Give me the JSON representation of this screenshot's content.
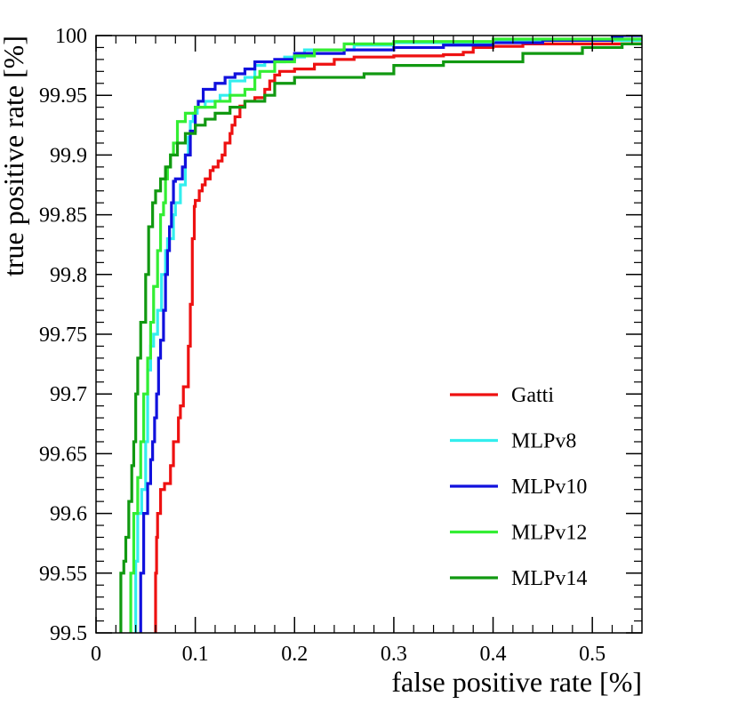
{
  "chart_data": {
    "type": "line",
    "title": "",
    "xlabel": "false positive rate [%]",
    "ylabel": "true positive rate [%]",
    "xlim": [
      0,
      0.55
    ],
    "ylim": [
      99.5,
      100
    ],
    "xticks": [
      0,
      0.1,
      0.2,
      0.3,
      0.4,
      0.5
    ],
    "xtick_labels": [
      "0",
      "0.1",
      "0.2",
      "0.3",
      "0.4",
      "0.5"
    ],
    "yticks": [
      99.5,
      99.55,
      99.6,
      99.65,
      99.7,
      99.75,
      99.8,
      99.85,
      99.9,
      99.95,
      100
    ],
    "ytick_labels": [
      "99.5",
      "99.55",
      "99.6",
      "99.65",
      "99.7",
      "99.75",
      "99.8",
      "99.85",
      "99.9",
      "99.95",
      "100"
    ],
    "grid": false,
    "legend_position": "bottom-right",
    "series": [
      {
        "name": "Gatti",
        "color": "#ee1111",
        "points": [
          [
            0.06,
            99.5
          ],
          [
            0.061,
            99.55
          ],
          [
            0.062,
            99.58
          ],
          [
            0.065,
            99.6
          ],
          [
            0.069,
            99.62
          ],
          [
            0.075,
            99.625
          ],
          [
            0.078,
            99.64
          ],
          [
            0.083,
            99.66
          ],
          [
            0.085,
            99.68
          ],
          [
            0.088,
            99.69
          ],
          [
            0.093,
            99.706
          ],
          [
            0.095,
            99.74
          ],
          [
            0.097,
            99.775
          ],
          [
            0.099,
            99.83
          ],
          [
            0.1,
            99.857
          ],
          [
            0.104,
            99.862
          ],
          [
            0.107,
            99.87
          ],
          [
            0.11,
            99.875
          ],
          [
            0.115,
            99.88
          ],
          [
            0.118,
            99.887
          ],
          [
            0.123,
            99.89
          ],
          [
            0.127,
            99.895
          ],
          [
            0.13,
            99.9
          ],
          [
            0.135,
            99.91
          ],
          [
            0.137,
            99.918
          ],
          [
            0.14,
            99.925
          ],
          [
            0.145,
            99.932
          ],
          [
            0.15,
            99.941
          ],
          [
            0.16,
            99.945
          ],
          [
            0.17,
            99.948
          ],
          [
            0.175,
            99.955
          ],
          [
            0.18,
            99.962
          ],
          [
            0.185,
            99.967
          ],
          [
            0.2,
            99.97
          ],
          [
            0.22,
            99.972
          ],
          [
            0.24,
            99.976
          ],
          [
            0.26,
            99.98
          ],
          [
            0.3,
            99.982
          ],
          [
            0.35,
            99.983
          ],
          [
            0.37,
            99.984
          ],
          [
            0.38,
            99.986
          ],
          [
            0.4,
            99.99
          ],
          [
            0.43,
            99.991
          ],
          [
            0.44,
            99.993
          ],
          [
            0.55,
            99.993
          ]
        ]
      },
      {
        "name": "MLPv8",
        "color": "#33eeee",
        "points": [
          [
            0.04,
            99.5
          ],
          [
            0.042,
            99.56
          ],
          [
            0.046,
            99.6
          ],
          [
            0.05,
            99.62
          ],
          [
            0.052,
            99.66
          ],
          [
            0.055,
            99.72
          ],
          [
            0.058,
            99.74
          ],
          [
            0.062,
            99.75
          ],
          [
            0.066,
            99.77
          ],
          [
            0.07,
            99.8
          ],
          [
            0.072,
            99.82
          ],
          [
            0.078,
            99.83
          ],
          [
            0.08,
            99.85
          ],
          [
            0.085,
            99.86
          ],
          [
            0.09,
            99.875
          ],
          [
            0.093,
            99.9
          ],
          [
            0.095,
            99.915
          ],
          [
            0.098,
            99.928
          ],
          [
            0.102,
            99.935
          ],
          [
            0.11,
            99.94
          ],
          [
            0.125,
            99.945
          ],
          [
            0.135,
            99.95
          ],
          [
            0.15,
            99.962
          ],
          [
            0.16,
            99.965
          ],
          [
            0.17,
            99.975
          ],
          [
            0.19,
            99.978
          ],
          [
            0.21,
            99.982
          ],
          [
            0.26,
            99.988
          ],
          [
            0.3,
            99.992
          ],
          [
            0.4,
            99.994
          ],
          [
            0.55,
            99.996
          ]
        ]
      },
      {
        "name": "MLPv10",
        "color": "#1111dd",
        "points": [
          [
            0.045,
            99.5
          ],
          [
            0.048,
            99.55
          ],
          [
            0.052,
            99.6
          ],
          [
            0.055,
            99.625
          ],
          [
            0.057,
            99.645
          ],
          [
            0.059,
            99.66
          ],
          [
            0.061,
            99.68
          ],
          [
            0.063,
            99.7
          ],
          [
            0.065,
            99.73
          ],
          [
            0.068,
            99.745
          ],
          [
            0.07,
            99.77
          ],
          [
            0.072,
            99.8
          ],
          [
            0.074,
            99.82
          ],
          [
            0.076,
            99.84
          ],
          [
            0.078,
            99.86
          ],
          [
            0.08,
            99.878
          ],
          [
            0.087,
            99.88
          ],
          [
            0.09,
            99.89
          ],
          [
            0.095,
            99.9
          ],
          [
            0.1,
            99.92
          ],
          [
            0.103,
            99.94
          ],
          [
            0.108,
            99.945
          ],
          [
            0.12,
            99.955
          ],
          [
            0.13,
            99.96
          ],
          [
            0.14,
            99.965
          ],
          [
            0.15,
            99.968
          ],
          [
            0.16,
            99.972
          ],
          [
            0.18,
            99.978
          ],
          [
            0.2,
            99.98
          ],
          [
            0.25,
            99.985
          ],
          [
            0.3,
            99.988
          ],
          [
            0.35,
            99.99
          ],
          [
            0.4,
            99.992
          ],
          [
            0.45,
            99.994
          ],
          [
            0.52,
            99.996
          ],
          [
            0.53,
            99.999
          ],
          [
            0.55,
            100
          ]
        ]
      },
      {
        "name": "MLPv12",
        "color": "#33ee33",
        "points": [
          [
            0.035,
            99.5
          ],
          [
            0.038,
            99.55
          ],
          [
            0.042,
            99.6
          ],
          [
            0.045,
            99.63
          ],
          [
            0.048,
            99.66
          ],
          [
            0.052,
            99.7
          ],
          [
            0.055,
            99.73
          ],
          [
            0.058,
            99.76
          ],
          [
            0.062,
            99.79
          ],
          [
            0.065,
            99.82
          ],
          [
            0.068,
            99.85
          ],
          [
            0.07,
            99.86
          ],
          [
            0.072,
            99.88
          ],
          [
            0.075,
            99.89
          ],
          [
            0.078,
            99.9
          ],
          [
            0.082,
            99.91
          ],
          [
            0.09,
            99.928
          ],
          [
            0.1,
            99.935
          ],
          [
            0.12,
            99.94
          ],
          [
            0.135,
            99.945
          ],
          [
            0.15,
            99.95
          ],
          [
            0.16,
            99.955
          ],
          [
            0.165,
            99.965
          ],
          [
            0.18,
            99.97
          ],
          [
            0.2,
            99.978
          ],
          [
            0.22,
            99.983
          ],
          [
            0.25,
            99.988
          ],
          [
            0.3,
            99.993
          ],
          [
            0.4,
            99.995
          ],
          [
            0.55,
            99.997
          ]
        ]
      },
      {
        "name": "MLPv14",
        "color": "#119911",
        "points": [
          [
            0.025,
            99.5
          ],
          [
            0.028,
            99.55
          ],
          [
            0.03,
            99.56
          ],
          [
            0.033,
            99.58
          ],
          [
            0.036,
            99.61
          ],
          [
            0.038,
            99.64
          ],
          [
            0.04,
            99.66
          ],
          [
            0.042,
            99.7
          ],
          [
            0.045,
            99.73
          ],
          [
            0.05,
            99.76
          ],
          [
            0.053,
            99.8
          ],
          [
            0.057,
            99.84
          ],
          [
            0.06,
            99.86
          ],
          [
            0.065,
            99.87
          ],
          [
            0.07,
            99.88
          ],
          [
            0.075,
            99.89
          ],
          [
            0.082,
            99.9
          ],
          [
            0.09,
            99.91
          ],
          [
            0.1,
            99.918
          ],
          [
            0.11,
            99.925
          ],
          [
            0.12,
            99.93
          ],
          [
            0.135,
            99.935
          ],
          [
            0.15,
            99.94
          ],
          [
            0.17,
            99.945
          ],
          [
            0.18,
            99.95
          ],
          [
            0.2,
            99.96
          ],
          [
            0.27,
            99.965
          ],
          [
            0.3,
            99.968
          ],
          [
            0.35,
            99.975
          ],
          [
            0.43,
            99.978
          ],
          [
            0.49,
            99.985
          ],
          [
            0.53,
            99.99
          ],
          [
            0.55,
            99.993
          ]
        ]
      }
    ]
  }
}
